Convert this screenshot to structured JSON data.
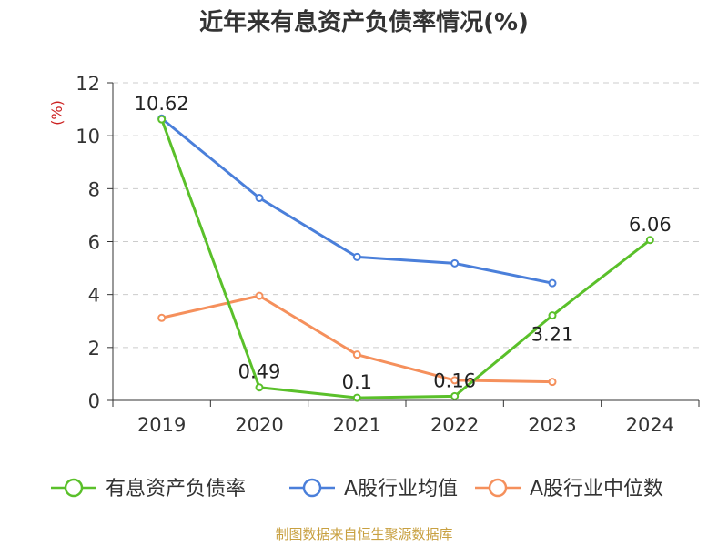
{
  "chart_data": {
    "type": "line",
    "title": "近年来有息资产负债率情况(%)",
    "ylabel": "(%)",
    "xlabel": "",
    "categories": [
      "2019",
      "2020",
      "2021",
      "2022",
      "2023",
      "2024"
    ],
    "ylim": [
      0,
      12
    ],
    "yticks": [
      0,
      2,
      4,
      6,
      8,
      10,
      12
    ],
    "grid": true,
    "legend_position": "bottom",
    "series": [
      {
        "name": "有息资产负债率",
        "color": "#5ac02a",
        "values": [
          10.62,
          0.49,
          0.1,
          0.16,
          3.21,
          6.06
        ],
        "labels": [
          "10.62",
          "0.49",
          "0.1",
          "0.16",
          "3.21",
          "6.06"
        ]
      },
      {
        "name": "A股行业均值",
        "color": "#4a7fda",
        "values": [
          10.65,
          7.65,
          5.42,
          5.18,
          4.43,
          null
        ]
      },
      {
        "name": "A股行业中位数",
        "color": "#f5905c",
        "values": [
          3.12,
          3.95,
          1.73,
          0.76,
          0.7,
          null
        ]
      }
    ],
    "source": "制图数据来自恒生聚源数据库"
  }
}
